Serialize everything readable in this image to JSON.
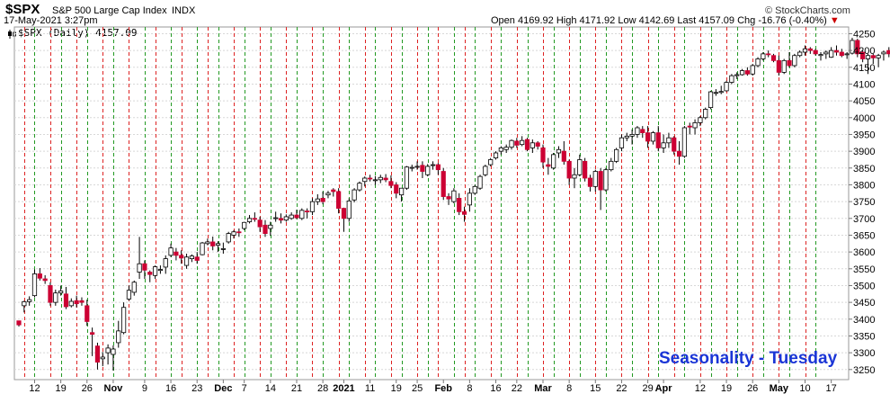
{
  "header": {
    "symbol": "$SPX",
    "full_name": "S&P 500 Large Cap Index",
    "exchange": "INDX",
    "datetime": "17-May-2021 3:27pm",
    "credit": "© StockCharts.com",
    "open_label": "Open",
    "open": "4169.92",
    "high_label": "High",
    "high": "4171.92",
    "low_label": "Low",
    "low": "4142.69",
    "last_label": "Last",
    "last": "4157.09",
    "chg_label": "Chg",
    "chg": "-16.76 (-0.40%)",
    "down_arrow": "▼"
  },
  "legend": {
    "text": "$SPX (Daily) 4157.09",
    "icon": "candlestick-icon"
  },
  "watermark": "Seasonality - Tuesday",
  "colors": {
    "up": "#ffffff",
    "down": "#cc0033",
    "outline": "#000000",
    "red_line": "#dd2222",
    "green_line": "#229922",
    "grid": "#d8d8d8",
    "watermark": "#1a35d6",
    "chg": "#cc0000"
  },
  "chart_data": {
    "type": "candlestick",
    "title": "$SPX S&P 500 Large Cap Index",
    "y_axis": {
      "min": 3220,
      "max": 4270,
      "ticks": [
        3250,
        3300,
        3350,
        3400,
        3450,
        3500,
        3550,
        3600,
        3650,
        3700,
        3750,
        3800,
        3850,
        3900,
        3950,
        4000,
        4050,
        4100,
        4150,
        4200,
        4250
      ],
      "position": "right"
    },
    "x_tick_labels": [
      {
        "label": "12",
        "idx": 3,
        "bold": false
      },
      {
        "label": "19",
        "idx": 8,
        "bold": false
      },
      {
        "label": "26",
        "idx": 13,
        "bold": false
      },
      {
        "label": "Nov",
        "idx": 18,
        "bold": true
      },
      {
        "label": "9",
        "idx": 24,
        "bold": false
      },
      {
        "label": "16",
        "idx": 29,
        "bold": false
      },
      {
        "label": "23",
        "idx": 34,
        "bold": false
      },
      {
        "label": "Dec",
        "idx": 39,
        "bold": true
      },
      {
        "label": "7",
        "idx": 43,
        "bold": false
      },
      {
        "label": "14",
        "idx": 48,
        "bold": false
      },
      {
        "label": "21",
        "idx": 53,
        "bold": false
      },
      {
        "label": "28",
        "idx": 58,
        "bold": false
      },
      {
        "label": "2021",
        "idx": 62,
        "bold": true
      },
      {
        "label": "11",
        "idx": 67,
        "bold": false
      },
      {
        "label": "19",
        "idx": 72,
        "bold": false
      },
      {
        "label": "25",
        "idx": 76,
        "bold": false
      },
      {
        "label": "Feb",
        "idx": 81,
        "bold": true
      },
      {
        "label": "8",
        "idx": 86,
        "bold": false
      },
      {
        "label": "16",
        "idx": 91,
        "bold": false
      },
      {
        "label": "22",
        "idx": 95,
        "bold": false
      },
      {
        "label": "Mar",
        "idx": 100,
        "bold": true
      },
      {
        "label": "8",
        "idx": 105,
        "bold": false
      },
      {
        "label": "15",
        "idx": 110,
        "bold": false
      },
      {
        "label": "22",
        "idx": 115,
        "bold": false
      },
      {
        "label": "29",
        "idx": 120,
        "bold": false
      },
      {
        "label": "Apr",
        "idx": 123,
        "bold": true
      },
      {
        "label": "12",
        "idx": 130,
        "bold": false
      },
      {
        "label": "19",
        "idx": 135,
        "bold": false
      },
      {
        "label": "26",
        "idx": 140,
        "bold": false
      },
      {
        "label": "May",
        "idx": 145,
        "bold": true
      },
      {
        "label": "10",
        "idx": 150,
        "bold": false
      },
      {
        "label": "17",
        "idx": 155,
        "bold": false
      }
    ],
    "red_line_indices": [
      1,
      6,
      11,
      16,
      21,
      26,
      31,
      36,
      41,
      46,
      51,
      56,
      61,
      66,
      71,
      76,
      80,
      85,
      90,
      95,
      100,
      105,
      110,
      115,
      120,
      125,
      130,
      135,
      140,
      145,
      150
    ],
    "green_line_indices": [
      3,
      8,
      13,
      18,
      24,
      29,
      34,
      38,
      43,
      48,
      53,
      58,
      63,
      68,
      73,
      78,
      83,
      87,
      92,
      97,
      102,
      107,
      112,
      117,
      122,
      127,
      132,
      137,
      142,
      147,
      152
    ],
    "candles": [
      [
        3395,
        3395,
        3378,
        3383
      ],
      [
        3440,
        3455,
        3420,
        3452
      ],
      [
        3452,
        3468,
        3440,
        3458
      ],
      [
        3470,
        3548,
        3465,
        3535
      ],
      [
        3535,
        3552,
        3515,
        3522
      ],
      [
        3520,
        3531,
        3505,
        3515
      ],
      [
        3500,
        3510,
        3440,
        3450
      ],
      [
        3450,
        3488,
        3440,
        3478
      ],
      [
        3478,
        3500,
        3470,
        3484
      ],
      [
        3475,
        3496,
        3430,
        3437
      ],
      [
        3440,
        3462,
        3435,
        3453
      ],
      [
        3455,
        3470,
        3435,
        3446
      ],
      [
        3455,
        3465,
        3440,
        3450
      ],
      [
        3440,
        3458,
        3380,
        3393
      ],
      [
        3360,
        3375,
        3290,
        3355
      ],
      [
        3320,
        3330,
        3250,
        3272
      ],
      [
        3282,
        3302,
        3260,
        3287
      ],
      [
        3300,
        3325,
        3265,
        3314
      ],
      [
        3295,
        3322,
        3247,
        3311
      ],
      [
        3330,
        3395,
        3315,
        3365
      ],
      [
        3360,
        3450,
        3355,
        3435
      ],
      [
        3460,
        3500,
        3455,
        3486
      ],
      [
        3480,
        3515,
        3470,
        3510
      ],
      [
        3540,
        3645,
        3520,
        3565
      ],
      [
        3565,
        3575,
        3520,
        3546
      ],
      [
        3540,
        3545,
        3510,
        3533
      ],
      [
        3530,
        3560,
        3520,
        3556
      ],
      [
        3545,
        3560,
        3535,
        3548
      ],
      [
        3555,
        3590,
        3535,
        3580
      ],
      [
        3590,
        3625,
        3585,
        3612
      ],
      [
        3600,
        3612,
        3575,
        3590
      ],
      [
        3590,
        3605,
        3565,
        3582
      ],
      [
        3560,
        3595,
        3550,
        3585
      ],
      [
        3580,
        3593,
        3570,
        3588
      ],
      [
        3585,
        3600,
        3565,
        3575
      ],
      [
        3592,
        3630,
        3590,
        3627
      ],
      [
        3625,
        3640,
        3620,
        3630
      ],
      [
        3630,
        3646,
        3605,
        3618
      ],
      [
        3620,
        3632,
        3600,
        3625
      ],
      [
        3610,
        3628,
        3595,
        3610
      ],
      [
        3630,
        3660,
        3625,
        3655
      ],
      [
        3650,
        3665,
        3640,
        3660
      ],
      [
        3660,
        3670,
        3645,
        3658
      ],
      [
        3670,
        3690,
        3665,
        3688
      ],
      [
        3690,
        3710,
        3685,
        3700
      ],
      [
        3700,
        3718,
        3690,
        3698
      ],
      [
        3695,
        3705,
        3660,
        3675
      ],
      [
        3680,
        3695,
        3645,
        3655
      ],
      [
        3670,
        3690,
        3648,
        3680
      ],
      [
        3700,
        3720,
        3690,
        3702
      ],
      [
        3700,
        3715,
        3685,
        3695
      ],
      [
        3695,
        3712,
        3690,
        3705
      ],
      [
        3700,
        3718,
        3696,
        3710
      ],
      [
        3710,
        3726,
        3698,
        3702
      ],
      [
        3700,
        3730,
        3695,
        3724
      ],
      [
        3722,
        3730,
        3700,
        3720
      ],
      [
        3720,
        3760,
        3710,
        3750
      ],
      [
        3750,
        3772,
        3740,
        3758
      ],
      [
        3760,
        3780,
        3742,
        3750
      ],
      [
        3770,
        3782,
        3760,
        3775
      ],
      [
        3785,
        3790,
        3765,
        3780
      ],
      [
        3780,
        3790,
        3715,
        3730
      ],
      [
        3730,
        3732,
        3660,
        3700
      ],
      [
        3700,
        3760,
        3690,
        3752
      ],
      [
        3755,
        3790,
        3748,
        3785
      ],
      [
        3785,
        3810,
        3780,
        3805
      ],
      [
        3810,
        3825,
        3795,
        3820
      ],
      [
        3820,
        3830,
        3810,
        3818
      ],
      [
        3815,
        3826,
        3800,
        3815
      ],
      [
        3815,
        3830,
        3805,
        3822
      ],
      [
        3820,
        3832,
        3808,
        3815
      ],
      [
        3810,
        3828,
        3790,
        3798
      ],
      [
        3800,
        3808,
        3760,
        3775
      ],
      [
        3770,
        3790,
        3750,
        3790
      ],
      [
        3790,
        3856,
        3785,
        3853
      ],
      [
        3850,
        3860,
        3840,
        3852
      ],
      [
        3853,
        3870,
        3845,
        3855
      ],
      [
        3858,
        3870,
        3820,
        3840
      ],
      [
        3830,
        3862,
        3825,
        3855
      ],
      [
        3860,
        3870,
        3845,
        3860
      ],
      [
        3860,
        3865,
        3830,
        3845
      ],
      [
        3840,
        3850,
        3755,
        3765
      ],
      [
        3765,
        3775,
        3740,
        3758
      ],
      [
        3750,
        3790,
        3745,
        3782
      ],
      [
        3760,
        3775,
        3710,
        3720
      ],
      [
        3720,
        3735,
        3690,
        3712
      ],
      [
        3740,
        3790,
        3720,
        3775
      ],
      [
        3775,
        3800,
        3770,
        3795
      ],
      [
        3790,
        3830,
        3785,
        3825
      ],
      [
        3830,
        3860,
        3825,
        3855
      ],
      [
        3860,
        3880,
        3855,
        3875
      ],
      [
        3880,
        3900,
        3875,
        3895
      ],
      [
        3900,
        3915,
        3890,
        3910
      ],
      [
        3905,
        3920,
        3895,
        3912
      ],
      [
        3912,
        3935,
        3905,
        3932
      ],
      [
        3930,
        3940,
        3910,
        3918
      ],
      [
        3920,
        3945,
        3915,
        3932
      ],
      [
        3935,
        3940,
        3900,
        3905
      ],
      [
        3910,
        3935,
        3895,
        3925
      ],
      [
        3925,
        3930,
        3905,
        3915
      ],
      [
        3910,
        3920,
        3850,
        3868
      ],
      [
        3860,
        3880,
        3830,
        3855
      ],
      [
        3850,
        3895,
        3845,
        3890
      ],
      [
        3895,
        3915,
        3880,
        3905
      ],
      [
        3900,
        3930,
        3860,
        3870
      ],
      [
        3870,
        3875,
        3800,
        3820
      ],
      [
        3820,
        3850,
        3790,
        3830
      ],
      [
        3830,
        3890,
        3825,
        3875
      ],
      [
        3870,
        3880,
        3810,
        3820
      ],
      [
        3820,
        3830,
        3780,
        3795
      ],
      [
        3795,
        3845,
        3780,
        3840
      ],
      [
        3840,
        3850,
        3725,
        3785
      ],
      [
        3785,
        3850,
        3780,
        3845
      ],
      [
        3845,
        3880,
        3840,
        3870
      ],
      [
        3870,
        3910,
        3865,
        3905
      ],
      [
        3910,
        3950,
        3900,
        3940
      ],
      [
        3940,
        3955,
        3930,
        3945
      ],
      [
        3945,
        3965,
        3920,
        3950
      ],
      [
        3950,
        3975,
        3940,
        3970
      ],
      [
        3965,
        3975,
        3940,
        3955
      ],
      [
        3955,
        3975,
        3910,
        3930
      ],
      [
        3930,
        3960,
        3920,
        3955
      ],
      [
        3955,
        3975,
        3900,
        3910
      ],
      [
        3910,
        3950,
        3895,
        3925
      ],
      [
        3925,
        3955,
        3910,
        3940
      ],
      [
        3940,
        3945,
        3890,
        3900
      ],
      [
        3900,
        3930,
        3860,
        3885
      ],
      [
        3885,
        3975,
        3880,
        3970
      ],
      [
        3975,
        3985,
        3950,
        3972
      ],
      [
        3970,
        3995,
        3950,
        3985
      ],
      [
        3985,
        4005,
        3975,
        4000
      ],
      [
        4000,
        4030,
        3995,
        4025
      ],
      [
        4030,
        4080,
        4025,
        4077
      ],
      [
        4075,
        4085,
        4065,
        4075
      ],
      [
        4075,
        4095,
        4070,
        4078
      ],
      [
        4080,
        4110,
        4078,
        4105
      ],
      [
        4105,
        4130,
        4100,
        4125
      ],
      [
        4125,
        4135,
        4115,
        4128
      ],
      [
        4128,
        4145,
        4125,
        4140
      ],
      [
        4140,
        4150,
        4125,
        4130
      ],
      [
        4130,
        4160,
        4125,
        4155
      ],
      [
        4155,
        4180,
        4150,
        4175
      ],
      [
        4175,
        4195,
        4170,
        4190
      ],
      [
        4190,
        4200,
        4180,
        4188
      ],
      [
        4185,
        4190,
        4165,
        4170
      ],
      [
        4170,
        4185,
        4125,
        4135
      ],
      [
        4135,
        4175,
        4130,
        4170
      ],
      [
        4170,
        4195,
        4150,
        4155
      ],
      [
        4155,
        4190,
        4150,
        4185
      ],
      [
        4185,
        4200,
        4180,
        4195
      ],
      [
        4195,
        4215,
        4185,
        4205
      ],
      [
        4205,
        4210,
        4190,
        4200
      ],
      [
        4200,
        4205,
        4185,
        4190
      ],
      [
        4185,
        4195,
        4170,
        4188
      ],
      [
        4190,
        4200,
        4175,
        4195
      ],
      [
        4180,
        4210,
        4178,
        4200
      ],
      [
        4200,
        4215,
        4185,
        4195
      ],
      [
        4195,
        4205,
        4180,
        4185
      ],
      [
        4190,
        4195,
        4175,
        4190
      ],
      [
        4192,
        4238,
        4188,
        4230
      ],
      [
        4230,
        4235,
        4180,
        4190
      ],
      [
        4195,
        4200,
        4165,
        4175
      ],
      [
        4175,
        4190,
        4130,
        4185
      ],
      [
        4185,
        4190,
        4160,
        4178
      ],
      [
        4178,
        4190,
        4150,
        4185
      ],
      [
        4190,
        4200,
        4170,
        4195
      ],
      [
        4200,
        4210,
        4180,
        4190
      ],
      [
        4190,
        4225,
        4185,
        4205
      ],
      [
        4205,
        4230,
        4190,
        4225
      ],
      [
        4225,
        4235,
        4210,
        4220
      ],
      [
        4230,
        4240,
        4170,
        4188
      ],
      [
        4180,
        4190,
        4150,
        4155
      ]
    ]
  }
}
